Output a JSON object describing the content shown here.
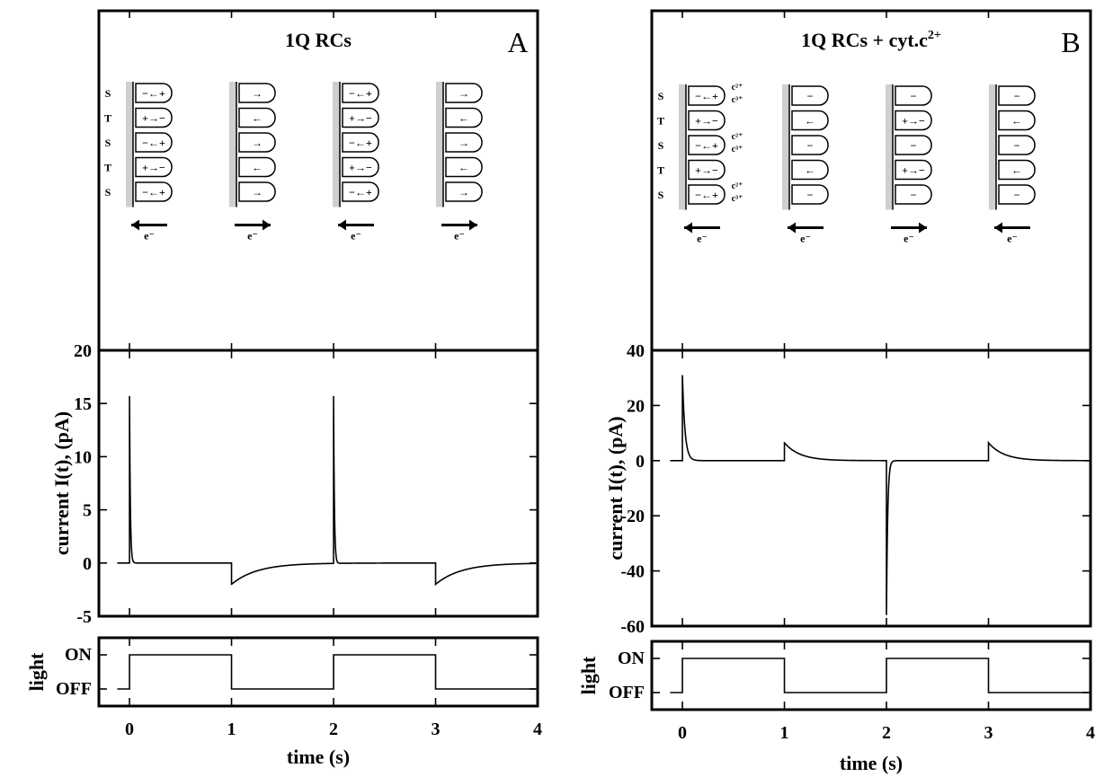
{
  "panels": [
    {
      "letter": "A",
      "title": "1Q RCs",
      "diagram": {
        "row_labels": [
          "S",
          "T",
          "S",
          "T",
          "S"
        ],
        "electron_label": "e⁻",
        "columns": [
          {
            "direction": "left",
            "cells": [
              "−←+",
              "+→−",
              "−←+",
              "+→−",
              "−←+"
            ]
          },
          {
            "direction": "right",
            "cells": [
              "→",
              "←",
              "→",
              "←",
              "→"
            ]
          },
          {
            "direction": "left",
            "cells": [
              "−←+",
              "+→−",
              "−←+",
              "+→−",
              "−←+"
            ]
          },
          {
            "direction": "right",
            "cells": [
              "→",
              "←",
              "→",
              "←",
              "→"
            ]
          }
        ],
        "cyt_labels": []
      }
    },
    {
      "letter": "B",
      "title": "1Q RCs + cyt.c",
      "title_superscript": "2+",
      "diagram": {
        "row_labels": [
          "S",
          "T",
          "S",
          "T",
          "S"
        ],
        "electron_label": "e⁻",
        "columns": [
          {
            "direction": "left",
            "cells": [
              "−←+",
              "+→−",
              "−←+",
              "+→−",
              "−←+"
            ]
          },
          {
            "direction": "left",
            "cells": [
              "−",
              "←",
              "−",
              "←",
              "−"
            ]
          },
          {
            "direction": "right",
            "cells": [
              "−",
              "+→−",
              "−",
              "+→−",
              "−"
            ]
          },
          {
            "direction": "left",
            "cells": [
              "−",
              "←",
              "−",
              "←",
              "−"
            ]
          }
        ],
        "cyt_labels": [
          "c²⁺",
          "c³⁺"
        ]
      }
    }
  ],
  "chart_data": [
    {
      "type": "line",
      "panel": "A",
      "xlabel": "time (s)",
      "ylabel": "current I(t), (pA)",
      "xlim": [
        -0.3,
        4
      ],
      "ylim": [
        -5,
        20
      ],
      "xticks": [
        "0",
        "1",
        "2",
        "3",
        "4"
      ],
      "yticks": [
        "-5",
        "0",
        "5",
        "10",
        "15",
        "20"
      ],
      "events": [
        {
          "t": 0,
          "peak": 15.7,
          "tau": 0.008
        },
        {
          "t": 1,
          "peak": -2.0,
          "tau": 0.25
        },
        {
          "t": 2,
          "peak": 15.7,
          "tau": 0.008
        },
        {
          "t": 3,
          "peak": -2.0,
          "tau": 0.25
        }
      ],
      "light": {
        "ylabel": "light",
        "levels": [
          "ON",
          "OFF"
        ],
        "on_intervals": [
          [
            0,
            1
          ],
          [
            2,
            3
          ]
        ]
      }
    },
    {
      "type": "line",
      "panel": "B",
      "xlabel": "time (s)",
      "ylabel": "current I(t), (pA)",
      "xlim": [
        -0.3,
        4
      ],
      "ylim": [
        -60,
        40
      ],
      "xticks": [
        "0",
        "1",
        "2",
        "3",
        "4"
      ],
      "yticks": [
        "-60",
        "-40",
        "-20",
        "0",
        "20",
        "40"
      ],
      "events": [
        {
          "t": 0,
          "peak": 31,
          "tau": 0.025
        },
        {
          "t": 1,
          "peak": 6.5,
          "tau": 0.15
        },
        {
          "t": 2,
          "peak": -56,
          "tau": 0.012
        },
        {
          "t": 3,
          "peak": 6.5,
          "tau": 0.15
        }
      ],
      "light": {
        "ylabel": "light",
        "levels": [
          "ON",
          "OFF"
        ],
        "on_intervals": [
          [
            0,
            1
          ],
          [
            2,
            3
          ]
        ]
      }
    }
  ]
}
